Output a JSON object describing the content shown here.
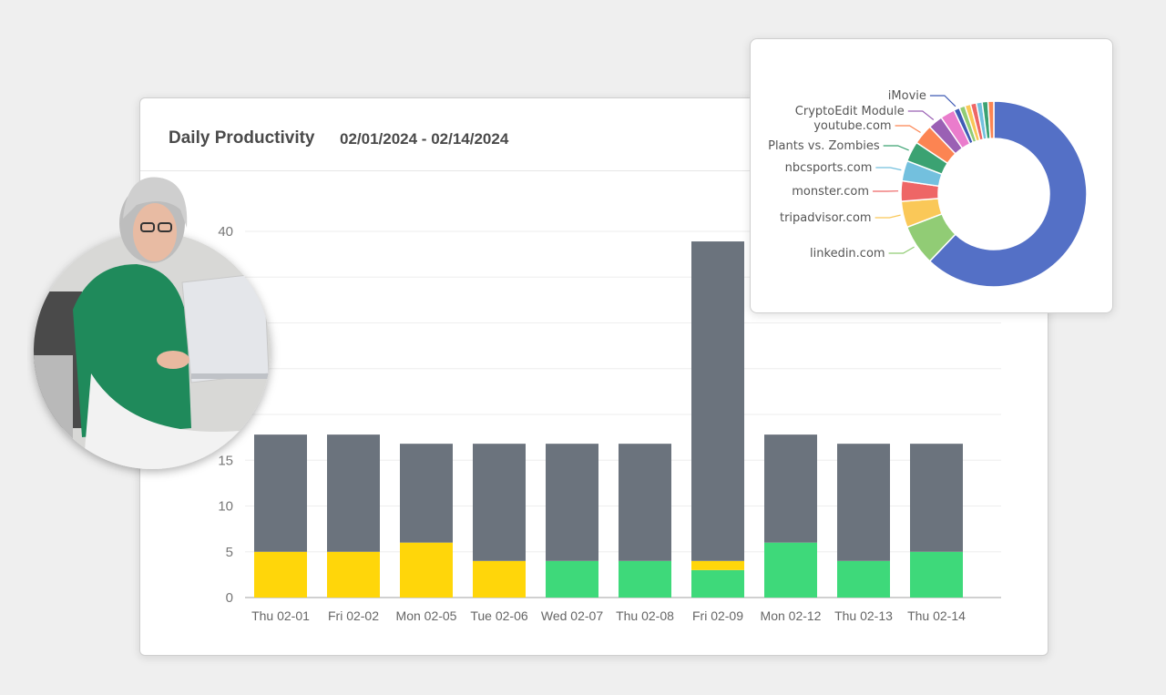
{
  "header": {
    "title": "Daily Productivity",
    "date_range": "02/01/2024 - 02/14/2024"
  },
  "chart_data": [
    {
      "type": "bar",
      "stacked": true,
      "categories": [
        "Thu 02-01",
        "Fri 02-02",
        "Mon 02-05",
        "Tue 02-06",
        "Wed 02-07",
        "Thu 02-08",
        "Fri 02-09",
        "Mon 02-12",
        "Thu 02-13",
        "Thu 02-14"
      ],
      "series": [
        {
          "color": "#3ed97a",
          "values": [
            0,
            0,
            0,
            0,
            4,
            4,
            3,
            6,
            4,
            5
          ]
        },
        {
          "color": "#ffd60a",
          "values": [
            5,
            5,
            6,
            4,
            0,
            0,
            1,
            0,
            0,
            0
          ]
        },
        {
          "color": "#6b737d",
          "values": [
            12.8,
            12.8,
            10.8,
            12.8,
            12.8,
            12.8,
            34.9,
            11.8,
            12.8,
            11.8
          ]
        }
      ],
      "ylim": [
        0,
        40
      ],
      "yticks": [
        0,
        5,
        10,
        15,
        20,
        25,
        30,
        35,
        40
      ],
      "ytick_labels_visible": [
        "0",
        "5",
        "10",
        "15",
        "40"
      ],
      "grid": true
    },
    {
      "type": "pie",
      "donut": true,
      "slices": [
        {
          "label": "",
          "value": 61.5,
          "color": "#5470c6"
        },
        {
          "label": "linkedin.com",
          "value": 7,
          "color": "#91cc75"
        },
        {
          "label": "tripadvisor.com",
          "value": 4.5,
          "color": "#fac858"
        },
        {
          "label": "monster.com",
          "value": 3.5,
          "color": "#ee6666"
        },
        {
          "label": "nbcsports.com",
          "value": 3.5,
          "color": "#73c0de"
        },
        {
          "label": "Plants vs. Zombies",
          "value": 3.5,
          "color": "#3ba272"
        },
        {
          "label": "youtube.com",
          "value": 3.5,
          "color": "#fc8452"
        },
        {
          "label": "CryptoEdit Module",
          "value": 2.5,
          "color": "#9a60b4"
        },
        {
          "label": "",
          "value": 2.5,
          "color": "#ea7ccc"
        },
        {
          "label": "iMovie",
          "value": 1,
          "color": "#3f5bb5"
        },
        {
          "label": "",
          "value": 1,
          "color": "#91cc75"
        },
        {
          "label": "",
          "value": 1,
          "color": "#fac858"
        },
        {
          "label": "",
          "value": 1,
          "color": "#ee6666"
        },
        {
          "label": "",
          "value": 1,
          "color": "#73c0de"
        },
        {
          "label": "",
          "value": 1,
          "color": "#3ba272"
        },
        {
          "label": "",
          "value": 1,
          "color": "#fc8452"
        }
      ]
    }
  ]
}
